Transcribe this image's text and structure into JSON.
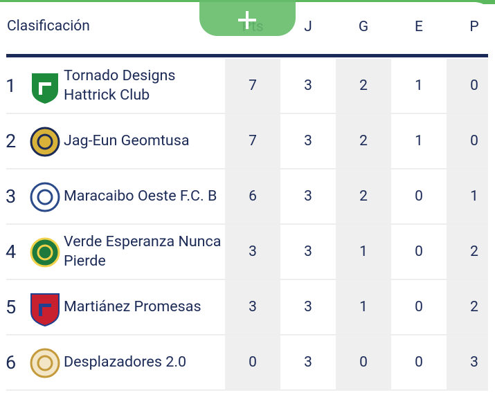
{
  "header": {
    "title": "Clasificación",
    "columns": [
      "Pts",
      "J",
      "G",
      "E",
      "P"
    ]
  },
  "table": {
    "rows": [
      {
        "rank": "1",
        "team": "Tornado Designs Hattrick Club",
        "stats": [
          "7",
          "3",
          "2",
          "1",
          "0"
        ]
      },
      {
        "rank": "2",
        "team": "Jag-Eun Geomtusa",
        "stats": [
          "7",
          "3",
          "2",
          "1",
          "0"
        ]
      },
      {
        "rank": "3",
        "team": "Maracaibo Oeste F.C. B",
        "stats": [
          "6",
          "3",
          "2",
          "0",
          "1"
        ]
      },
      {
        "rank": "4",
        "team": "Verde Esperanza Nunca Pierde",
        "stats": [
          "3",
          "3",
          "1",
          "0",
          "2"
        ]
      },
      {
        "rank": "5",
        "team": "Martiánez Promesas",
        "stats": [
          "3",
          "3",
          "1",
          "0",
          "2"
        ]
      },
      {
        "rank": "6",
        "team": "Desplazadores 2.0",
        "stats": [
          "0",
          "3",
          "0",
          "0",
          "3"
        ]
      }
    ]
  }
}
